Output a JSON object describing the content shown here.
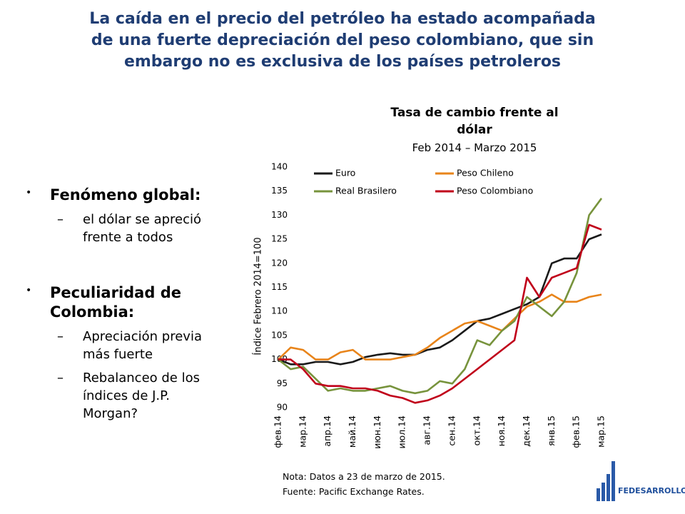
{
  "slide_title": [
    "La caída en el precio del petróleo ha estado acompañada",
    "de una fuerte depreciación del peso colombiano, que sin",
    "embargo no es exclusiva de los países petroleros"
  ],
  "bullets": [
    {
      "text": "Fenómeno global:",
      "subs": [
        "el dólar se apreció frente a todos"
      ]
    },
    {
      "text": "Peculiaridad de Colombia:",
      "subs": [
        "Apreciación previa más fuerte",
        "Rebalanceo de los índices de J.P. Morgan?"
      ]
    }
  ],
  "chart_data": {
    "type": "line",
    "title": "Tasa de cambio frente al dólar",
    "subtitle": "Feb 2014 – Marzo 2015",
    "y_label": "Índice Febrero 2014=100",
    "categories": [
      "фев.14",
      null,
      "мар.14",
      null,
      "апр.14",
      null,
      "май.14",
      null,
      "июн.14",
      null,
      "июл.14",
      null,
      "авг.14",
      null,
      "сен.14",
      null,
      "окт.14",
      null,
      "ноя.14",
      null,
      "дек.14",
      null,
      "янв.15",
      null,
      "фев.15",
      null,
      "мар.15"
    ],
    "series": [
      {
        "name": "Euro",
        "color": "#1a1a1a",
        "values": [
          100,
          99,
          99,
          99.5,
          99.5,
          99,
          99.5,
          100.5,
          101,
          101.3,
          101,
          101,
          102,
          102.5,
          104,
          106,
          108,
          108.5,
          109.5,
          110.5,
          111.5,
          113,
          120,
          121,
          121,
          125,
          126
        ]
      },
      {
        "name": "Peso Chileno",
        "color": "#e8841a",
        "values": [
          100,
          102.5,
          102,
          100,
          100,
          101.5,
          102,
          100,
          100,
          100,
          100.5,
          101,
          102.5,
          104.5,
          106,
          107.5,
          108,
          107,
          106,
          108.5,
          111,
          112,
          113.5,
          112,
          112,
          113,
          113.5
        ]
      },
      {
        "name": "Real Brasilero",
        "color": "#77933c",
        "values": [
          100,
          98,
          98.5,
          96,
          93.5,
          94,
          93.5,
          93.5,
          94,
          94.5,
          93.5,
          93,
          93.5,
          95.5,
          95,
          98,
          104,
          103,
          106,
          108,
          113,
          111,
          109,
          112,
          118,
          130,
          133.5
        ]
      },
      {
        "name": "Peso Colombiano",
        "color": "#c0001a",
        "values": [
          100,
          100,
          98,
          95,
          94.5,
          94.5,
          94,
          94,
          93.5,
          92.5,
          92,
          91,
          91.5,
          92.5,
          94,
          96,
          98,
          100,
          102,
          104,
          117,
          113,
          117,
          118,
          119,
          128,
          127
        ]
      }
    ],
    "ylim": [
      90,
      140
    ],
    "yticks": [
      90,
      95,
      100,
      105,
      110,
      115,
      120,
      125,
      130,
      135,
      140
    ],
    "grid": false,
    "legend": "top"
  },
  "notes": [
    "Nota: Datos a 23 de marzo de 2015.",
    "Fuente: Pacific Exchange Rates."
  ],
  "logo": "FEDESARROLLO"
}
